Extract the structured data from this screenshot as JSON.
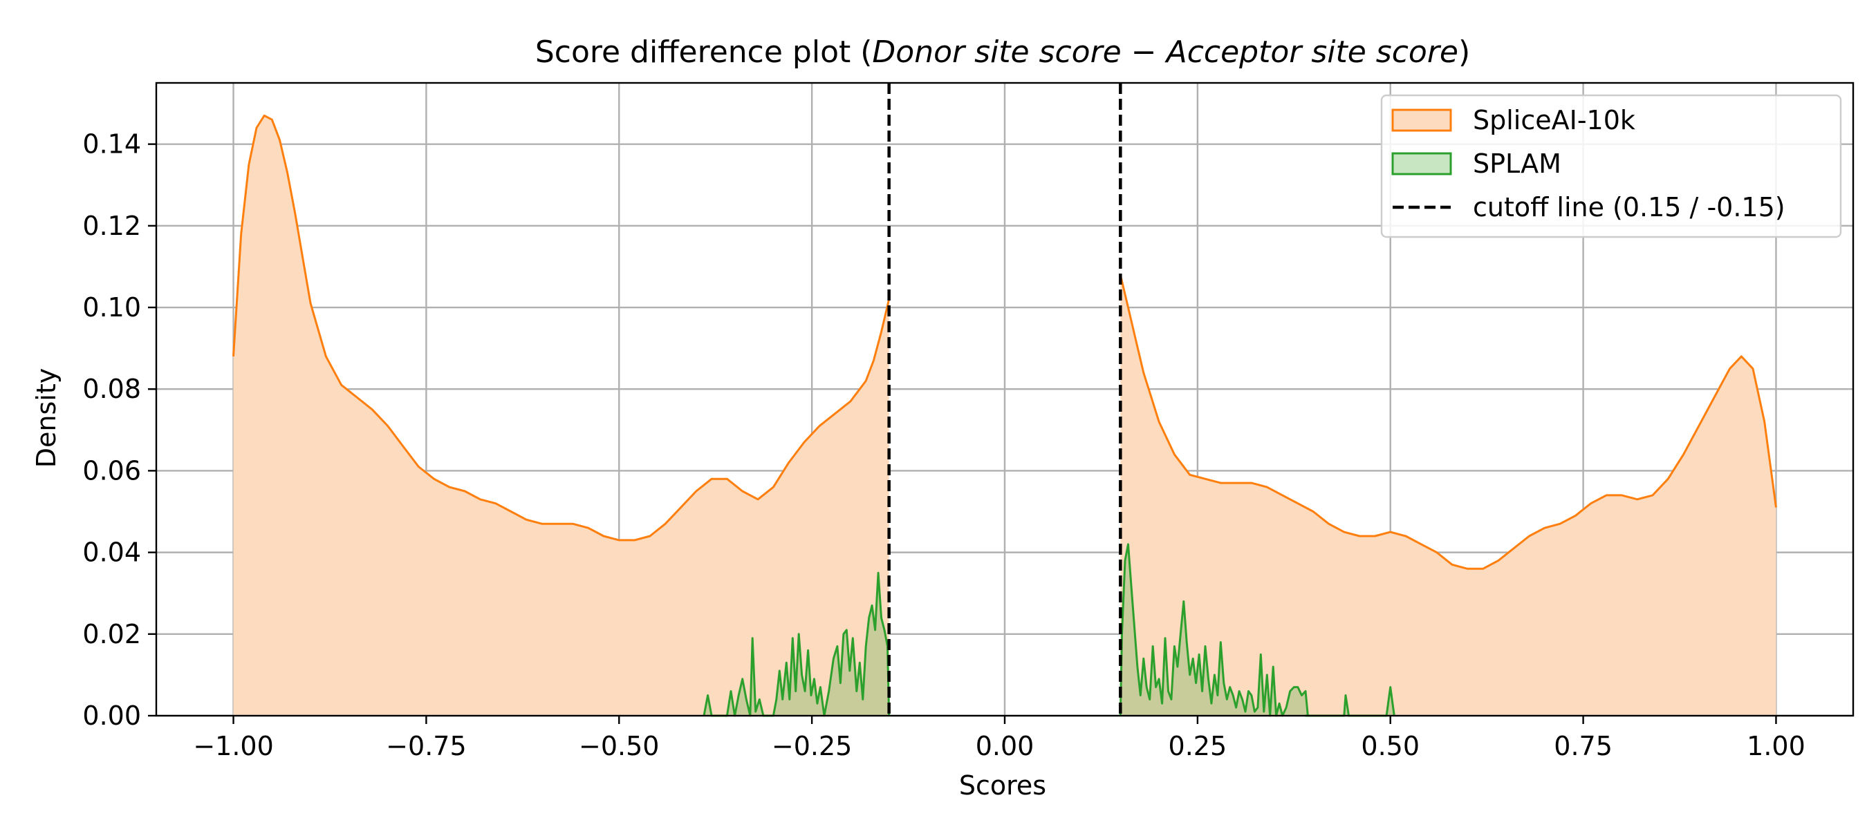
{
  "chart_data": {
    "type": "area",
    "title": {
      "prefix": "Score difference plot (",
      "italic_1": "Donor site score",
      "operator": " − ",
      "italic_2": "Acceptor site score",
      "suffix": ")"
    },
    "xlabel": "Scores",
    "ylabel": "Density",
    "xlim": [
      -1.1,
      1.1
    ],
    "ylim": [
      0,
      0.155
    ],
    "xticks": [
      -1.0,
      -0.75,
      -0.5,
      -0.25,
      0.0,
      0.25,
      0.5,
      0.75,
      1.0
    ],
    "xtick_labels": [
      "−1.00",
      "−0.75",
      "−0.50",
      "−0.25",
      "0.00",
      "0.25",
      "0.50",
      "0.75",
      "1.00"
    ],
    "yticks": [
      0.0,
      0.02,
      0.04,
      0.06,
      0.08,
      0.1,
      0.12,
      0.14
    ],
    "ytick_labels": [
      "0.00",
      "0.02",
      "0.04",
      "0.06",
      "0.08",
      "0.10",
      "0.12",
      "0.14"
    ],
    "grid": true,
    "legend_position": "top-right",
    "cutoffs": [
      -0.15,
      0.15
    ],
    "series": [
      {
        "name": "SpliceAI-10k",
        "color": "#ff7f0e",
        "fill": "#fddbbf",
        "segments": [
          [
            [
              -1.0,
              0.088
            ],
            [
              -0.99,
              0.118
            ],
            [
              -0.98,
              0.135
            ],
            [
              -0.97,
              0.144
            ],
            [
              -0.96,
              0.147
            ],
            [
              -0.95,
              0.146
            ],
            [
              -0.94,
              0.141
            ],
            [
              -0.93,
              0.133
            ],
            [
              -0.92,
              0.123
            ],
            [
              -0.91,
              0.112
            ],
            [
              -0.9,
              0.101
            ],
            [
              -0.88,
              0.088
            ],
            [
              -0.86,
              0.081
            ],
            [
              -0.84,
              0.078
            ],
            [
              -0.82,
              0.075
            ],
            [
              -0.8,
              0.071
            ],
            [
              -0.78,
              0.066
            ],
            [
              -0.76,
              0.061
            ],
            [
              -0.74,
              0.058
            ],
            [
              -0.72,
              0.056
            ],
            [
              -0.7,
              0.055
            ],
            [
              -0.68,
              0.053
            ],
            [
              -0.66,
              0.052
            ],
            [
              -0.64,
              0.05
            ],
            [
              -0.62,
              0.048
            ],
            [
              -0.6,
              0.047
            ],
            [
              -0.58,
              0.047
            ],
            [
              -0.56,
              0.047
            ],
            [
              -0.54,
              0.046
            ],
            [
              -0.52,
              0.044
            ],
            [
              -0.5,
              0.043
            ],
            [
              -0.48,
              0.043
            ],
            [
              -0.46,
              0.044
            ],
            [
              -0.44,
              0.047
            ],
            [
              -0.42,
              0.051
            ],
            [
              -0.4,
              0.055
            ],
            [
              -0.38,
              0.058
            ],
            [
              -0.36,
              0.058
            ],
            [
              -0.34,
              0.055
            ],
            [
              -0.32,
              0.053
            ],
            [
              -0.3,
              0.056
            ],
            [
              -0.28,
              0.062
            ],
            [
              -0.26,
              0.067
            ],
            [
              -0.24,
              0.071
            ],
            [
              -0.22,
              0.074
            ],
            [
              -0.2,
              0.077
            ],
            [
              -0.18,
              0.082
            ],
            [
              -0.17,
              0.087
            ],
            [
              -0.16,
              0.094
            ],
            [
              -0.15,
              0.102
            ]
          ],
          [
            [
              0.15,
              0.108
            ],
            [
              0.16,
              0.1
            ],
            [
              0.17,
              0.092
            ],
            [
              0.18,
              0.084
            ],
            [
              0.2,
              0.072
            ],
            [
              0.22,
              0.064
            ],
            [
              0.24,
              0.059
            ],
            [
              0.26,
              0.058
            ],
            [
              0.28,
              0.057
            ],
            [
              0.3,
              0.057
            ],
            [
              0.32,
              0.057
            ],
            [
              0.34,
              0.056
            ],
            [
              0.36,
              0.054
            ],
            [
              0.38,
              0.052
            ],
            [
              0.4,
              0.05
            ],
            [
              0.42,
              0.047
            ],
            [
              0.44,
              0.045
            ],
            [
              0.46,
              0.044
            ],
            [
              0.48,
              0.044
            ],
            [
              0.5,
              0.045
            ],
            [
              0.52,
              0.044
            ],
            [
              0.54,
              0.042
            ],
            [
              0.56,
              0.04
            ],
            [
              0.58,
              0.037
            ],
            [
              0.6,
              0.036
            ],
            [
              0.62,
              0.036
            ],
            [
              0.64,
              0.038
            ],
            [
              0.66,
              0.041
            ],
            [
              0.68,
              0.044
            ],
            [
              0.7,
              0.046
            ],
            [
              0.72,
              0.047
            ],
            [
              0.74,
              0.049
            ],
            [
              0.76,
              0.052
            ],
            [
              0.78,
              0.054
            ],
            [
              0.8,
              0.054
            ],
            [
              0.82,
              0.053
            ],
            [
              0.84,
              0.054
            ],
            [
              0.86,
              0.058
            ],
            [
              0.88,
              0.064
            ],
            [
              0.9,
              0.071
            ],
            [
              0.92,
              0.078
            ],
            [
              0.94,
              0.085
            ],
            [
              0.955,
              0.088
            ],
            [
              0.97,
              0.085
            ],
            [
              0.985,
              0.072
            ],
            [
              1.0,
              0.051
            ]
          ]
        ]
      },
      {
        "name": "SPLAM",
        "color": "#2ca02c",
        "fill": "rgba(44,160,44,0.25)",
        "segments": [
          [
            [
              -0.39,
              0.0
            ],
            [
              -0.385,
              0.005
            ],
            [
              -0.38,
              0.0
            ],
            [
              -0.37,
              0.0
            ],
            [
              -0.36,
              0.0
            ],
            [
              -0.355,
              0.006
            ],
            [
              -0.35,
              0.0
            ],
            [
              -0.345,
              0.005
            ],
            [
              -0.34,
              0.009
            ],
            [
              -0.335,
              0.004
            ],
            [
              -0.33,
              0.0
            ],
            [
              -0.327,
              0.019
            ],
            [
              -0.323,
              0.001
            ],
            [
              -0.318,
              0.004
            ],
            [
              -0.313,
              0.0
            ],
            [
              -0.3,
              0.0
            ],
            [
              -0.296,
              0.004
            ],
            [
              -0.292,
              0.011
            ],
            [
              -0.288,
              0.004
            ],
            [
              -0.283,
              0.013
            ],
            [
              -0.279,
              0.004
            ],
            [
              -0.275,
              0.019
            ],
            [
              -0.271,
              0.006
            ],
            [
              -0.267,
              0.02
            ],
            [
              -0.263,
              0.01
            ],
            [
              -0.259,
              0.006
            ],
            [
              -0.255,
              0.016
            ],
            [
              -0.251,
              0.005
            ],
            [
              -0.247,
              0.009
            ],
            [
              -0.243,
              0.003
            ],
            [
              -0.239,
              0.007
            ],
            [
              -0.234,
              0.0
            ],
            [
              -0.228,
              0.006
            ],
            [
              -0.222,
              0.014
            ],
            [
              -0.217,
              0.017
            ],
            [
              -0.213,
              0.008
            ],
            [
              -0.209,
              0.02
            ],
            [
              -0.205,
              0.021
            ],
            [
              -0.201,
              0.011
            ],
            [
              -0.197,
              0.019
            ],
            [
              -0.192,
              0.006
            ],
            [
              -0.188,
              0.013
            ],
            [
              -0.184,
              0.004
            ],
            [
              -0.18,
              0.017
            ],
            [
              -0.176,
              0.024
            ],
            [
              -0.172,
              0.027
            ],
            [
              -0.168,
              0.021
            ],
            [
              -0.164,
              0.035
            ],
            [
              -0.16,
              0.024
            ],
            [
              -0.156,
              0.021
            ],
            [
              -0.152,
              0.017
            ],
            [
              -0.15,
              0.0
            ]
          ],
          [
            [
              0.15,
              0.0
            ],
            [
              0.152,
              0.02
            ],
            [
              0.156,
              0.038
            ],
            [
              0.16,
              0.042
            ],
            [
              0.164,
              0.032
            ],
            [
              0.168,
              0.022
            ],
            [
              0.172,
              0.012
            ],
            [
              0.176,
              0.005
            ],
            [
              0.18,
              0.014
            ],
            [
              0.184,
              0.007
            ],
            [
              0.188,
              0.004
            ],
            [
              0.192,
              0.017
            ],
            [
              0.196,
              0.007
            ],
            [
              0.2,
              0.009
            ],
            [
              0.204,
              0.003
            ],
            [
              0.208,
              0.019
            ],
            [
              0.212,
              0.006
            ],
            [
              0.216,
              0.004
            ],
            [
              0.22,
              0.017
            ],
            [
              0.224,
              0.012
            ],
            [
              0.228,
              0.02
            ],
            [
              0.232,
              0.028
            ],
            [
              0.236,
              0.018
            ],
            [
              0.24,
              0.01
            ],
            [
              0.244,
              0.014
            ],
            [
              0.248,
              0.008
            ],
            [
              0.252,
              0.015
            ],
            [
              0.256,
              0.006
            ],
            [
              0.26,
              0.017
            ],
            [
              0.264,
              0.009
            ],
            [
              0.268,
              0.003
            ],
            [
              0.272,
              0.01
            ],
            [
              0.276,
              0.005
            ],
            [
              0.28,
              0.018
            ],
            [
              0.284,
              0.008
            ],
            [
              0.288,
              0.004
            ],
            [
              0.292,
              0.007
            ],
            [
              0.296,
              0.005
            ],
            [
              0.3,
              0.002
            ],
            [
              0.304,
              0.006
            ],
            [
              0.308,
              0.004
            ],
            [
              0.312,
              0.001
            ],
            [
              0.316,
              0.006
            ],
            [
              0.32,
              0.005
            ],
            [
              0.324,
              0.001
            ],
            [
              0.328,
              0.002
            ],
            [
              0.332,
              0.015
            ],
            [
              0.336,
              0.001
            ],
            [
              0.34,
              0.01
            ],
            [
              0.344,
              0.0
            ],
            [
              0.348,
              0.012
            ],
            [
              0.352,
              0.0
            ],
            [
              0.356,
              0.003
            ],
            [
              0.36,
              0.0
            ],
            [
              0.365,
              0.002
            ],
            [
              0.37,
              0.006
            ],
            [
              0.375,
              0.007
            ],
            [
              0.38,
              0.007
            ],
            [
              0.385,
              0.005
            ],
            [
              0.39,
              0.006
            ],
            [
              0.393,
              0.0
            ],
            [
              0.39,
              0.0
            ],
            [
              0.395,
              0.0
            ],
            [
              0.4,
              0.0
            ],
            [
              0.44,
              0.0
            ],
            [
              0.442,
              0.005
            ],
            [
              0.446,
              0.0
            ],
            [
              0.495,
              0.0
            ],
            [
              0.5,
              0.007
            ],
            [
              0.505,
              0.0
            ]
          ]
        ]
      }
    ],
    "legend": [
      {
        "label": "SpliceAI-10k",
        "kind": "patch",
        "edge": "#ff7f0e",
        "face": "#fddbbf"
      },
      {
        "label": "SPLAM",
        "kind": "patch",
        "edge": "#2ca02c",
        "face": "#c9e6c3"
      },
      {
        "label": "cutoff line (0.15 / -0.15)",
        "kind": "dashed-line",
        "edge": "#000000"
      }
    ]
  }
}
